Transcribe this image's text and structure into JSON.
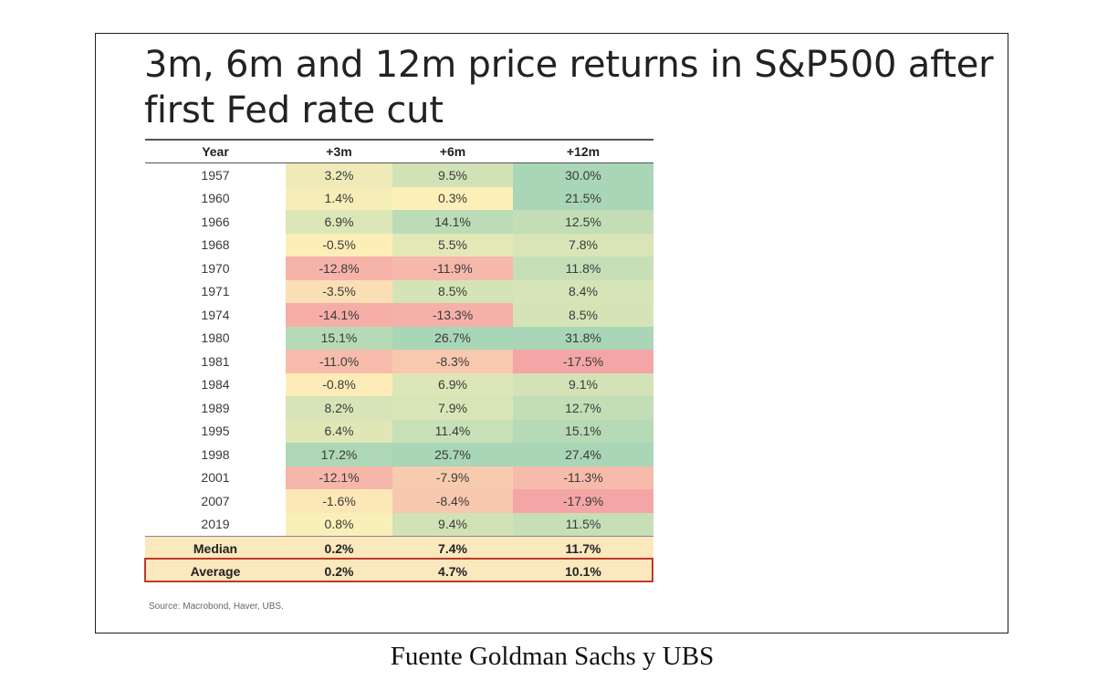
{
  "title_lines": [
    "3m, 6m and 12m price returns in S&P500 after",
    "first Fed rate cut"
  ],
  "source": "Source: Macrobond, Haver, UBS.",
  "caption": "Fuente Goldman Sachs y UBS",
  "chart_data": {
    "type": "table",
    "title": "3m, 6m and 12m price returns in S&P500 after first Fed rate cut",
    "columns": [
      "Year",
      "+3m",
      "+6m",
      "+12m"
    ],
    "rows": [
      {
        "year": "1957",
        "m3": "3.2%",
        "m6": "9.5%",
        "m12": "30.0%"
      },
      {
        "year": "1960",
        "m3": "1.4%",
        "m6": "0.3%",
        "m12": "21.5%"
      },
      {
        "year": "1966",
        "m3": "6.9%",
        "m6": "14.1%",
        "m12": "12.5%"
      },
      {
        "year": "1968",
        "m3": "-0.5%",
        "m6": "5.5%",
        "m12": "7.8%"
      },
      {
        "year": "1970",
        "m3": "-12.8%",
        "m6": "-11.9%",
        "m12": "11.8%"
      },
      {
        "year": "1971",
        "m3": "-3.5%",
        "m6": "8.5%",
        "m12": "8.4%"
      },
      {
        "year": "1974",
        "m3": "-14.1%",
        "m6": "-13.3%",
        "m12": "8.5%"
      },
      {
        "year": "1980",
        "m3": "15.1%",
        "m6": "26.7%",
        "m12": "31.8%"
      },
      {
        "year": "1981",
        "m3": "-11.0%",
        "m6": "-8.3%",
        "m12": "-17.5%"
      },
      {
        "year": "1984",
        "m3": "-0.8%",
        "m6": "6.9%",
        "m12": "9.1%"
      },
      {
        "year": "1989",
        "m3": "8.2%",
        "m6": "7.9%",
        "m12": "12.7%"
      },
      {
        "year": "1995",
        "m3": "6.4%",
        "m6": "11.4%",
        "m12": "15.1%"
      },
      {
        "year": "1998",
        "m3": "17.2%",
        "m6": "25.7%",
        "m12": "27.4%"
      },
      {
        "year": "2001",
        "m3": "-12.1%",
        "m6": "-7.9%",
        "m12": "-11.3%"
      },
      {
        "year": "2007",
        "m3": "-1.6%",
        "m6": "-8.4%",
        "m12": "-17.9%"
      },
      {
        "year": "2019",
        "m3": "0.8%",
        "m6": "9.4%",
        "m12": "11.5%"
      }
    ],
    "summary": [
      {
        "label": "Median",
        "m3": "0.2%",
        "m6": "7.4%",
        "m12": "11.7%"
      },
      {
        "label": "Average",
        "m3": "0.2%",
        "m6": "4.7%",
        "m12": "10.1%"
      }
    ],
    "highlight": "Average",
    "highlight_color": "#c0392b",
    "color_scale": {
      "low": "#f4a6a6",
      "mid": "#fdf0b8",
      "high": "#a9d6b6"
    }
  }
}
